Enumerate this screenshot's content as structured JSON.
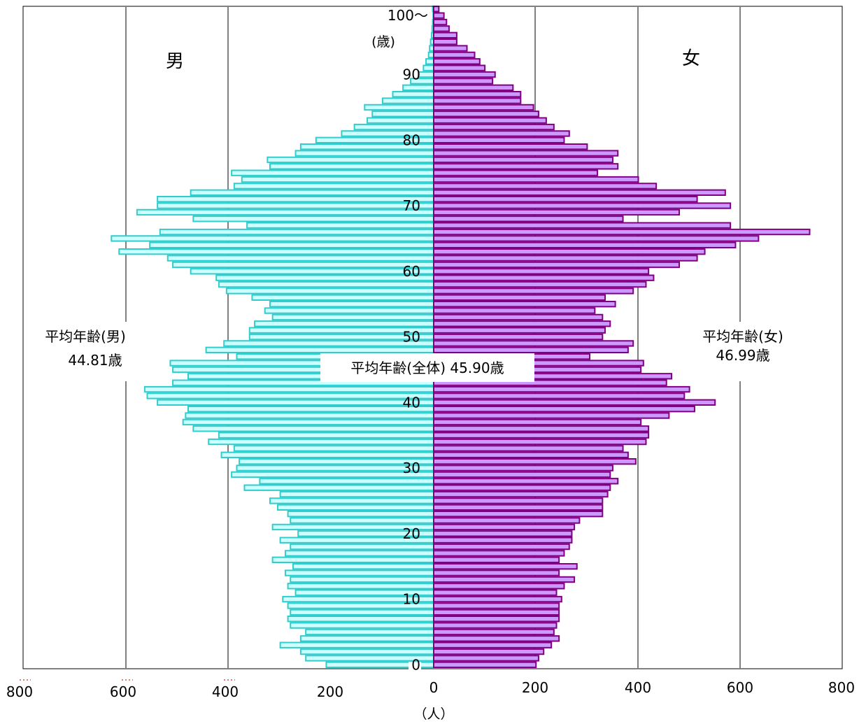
{
  "chart_data": {
    "type": "bar",
    "orientation": "horizontal",
    "subtype": "population-pyramid",
    "x_ticks_left": [
      "800",
      "600",
      "400",
      "200"
    ],
    "x_ticks_right": [
      "0",
      "200",
      "400",
      "600",
      "800"
    ],
    "xlim": [
      0,
      800
    ],
    "x_unit": "（人）",
    "y_ticks": [
      "0",
      "10",
      "20",
      "30",
      "40",
      "50",
      "60",
      "70",
      "80",
      "90",
      "100～"
    ],
    "y_unit": "(歳)",
    "ylim": [
      0,
      100
    ],
    "grid": true,
    "series": [
      {
        "name": "男",
        "side": "left",
        "color": "#CCFFFF",
        "stroke": "#33CCCC",
        "values": [
          210,
          250,
          260,
          300,
          260,
          250,
          280,
          285,
          280,
          285,
          295,
          270,
          285,
          280,
          290,
          275,
          315,
          290,
          280,
          300,
          265,
          315,
          280,
          285,
          305,
          320,
          300,
          370,
          340,
          395,
          385,
          380,
          415,
          390,
          440,
          420,
          470,
          490,
          485,
          480,
          540,
          560,
          565,
          510,
          480,
          510,
          515,
          385,
          445,
          410,
          360,
          360,
          350,
          315,
          330,
          320,
          355,
          405,
          420,
          425,
          475,
          510,
          520,
          615,
          555,
          630,
          535,
          365,
          470,
          580,
          540,
          540,
          475,
          390,
          375,
          395,
          320,
          325,
          270,
          260,
          230,
          180,
          155,
          130,
          120,
          135,
          100,
          80,
          60,
          45,
          30,
          20,
          15,
          10,
          8,
          6,
          4,
          3,
          2,
          1,
          2
        ]
      },
      {
        "name": "女",
        "side": "right",
        "color": "#CC99FF",
        "stroke": "#800080",
        "values": [
          200,
          205,
          215,
          230,
          245,
          235,
          240,
          245,
          245,
          245,
          250,
          240,
          255,
          275,
          245,
          280,
          245,
          255,
          265,
          270,
          270,
          275,
          285,
          330,
          330,
          330,
          340,
          345,
          360,
          345,
          350,
          395,
          380,
          370,
          415,
          420,
          420,
          405,
          460,
          510,
          550,
          490,
          500,
          455,
          465,
          405,
          410,
          305,
          380,
          390,
          330,
          335,
          345,
          330,
          315,
          355,
          335,
          390,
          415,
          430,
          420,
          480,
          515,
          530,
          590,
          635,
          735,
          580,
          370,
          480,
          580,
          515,
          570,
          435,
          400,
          320,
          360,
          350,
          360,
          300,
          255,
          265,
          235,
          220,
          205,
          195,
          170,
          170,
          155,
          115,
          120,
          100,
          90,
          80,
          65,
          45,
          45,
          30,
          25,
          20,
          10
        ]
      }
    ],
    "annotations": {
      "male_title": "男",
      "female_title": "女",
      "male_avg_label": "平均年齢(男)",
      "male_avg_value": "44.81歳",
      "female_avg_label": "平均年齢(女)",
      "female_avg_value": "46.99歳",
      "total_avg": "平均年齢(全体) 45.90歳"
    }
  }
}
